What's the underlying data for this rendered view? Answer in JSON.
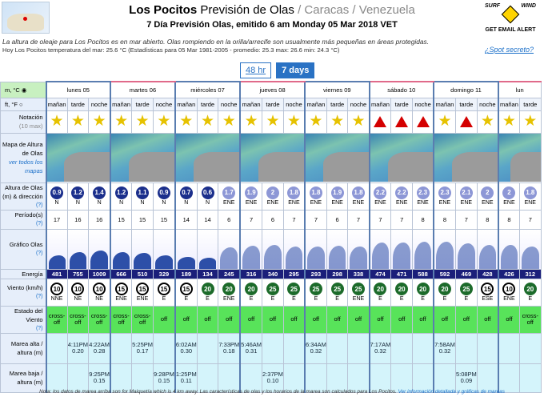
{
  "header": {
    "title_bold": "Los Pocitos",
    "title_normal": "Previsión de Olas",
    "title_gray": "/ Caracas / Venezuela",
    "subtitle": "7 Día Previsión Olas, emitido 6 am Monday 05 Mar 2018 VET",
    "logo_left": "SURF",
    "logo_right": "WIND",
    "logo_bottom": "GET EMAIL ALERT"
  },
  "notes": {
    "line1": "La altura de oleaje para Los Pocitos es en mar abierto. Olas rompiendo en la orilla/arrecife son usualmente más pequeñas en áreas protegidas.",
    "line2": "Hoy Los Pocitos temperatura del mar: 25.6 °C (Estadísticas para 05 Mar 1981-2005 - promedio: 25.3 max: 26.6 min: 24.3 °C)",
    "spot_link": "¿Spot secreto?"
  },
  "tabs": {
    "h48": "48 hr",
    "d7": "7 days"
  },
  "units": {
    "metric": "m, °C",
    "imperial": "ft, °F"
  },
  "days": [
    "lunes 05",
    "martes 06",
    "miércoles 07",
    "jueves 08",
    "viernes 09",
    "sábado 10",
    "domingo 11",
    "lun"
  ],
  "periods": [
    "mañan",
    "tarde",
    "noche"
  ],
  "period_row": [
    "mañan",
    "tarde",
    "noche",
    "mañan",
    "tarde",
    "noche",
    "mañan",
    "tarde",
    "noche",
    "mañan",
    "tarde",
    "noche",
    "mañan",
    "tarde",
    "noche",
    "mañan",
    "tarde",
    "noche",
    "mañan",
    "tarde",
    "noche",
    "mañan",
    "tarde"
  ],
  "labels": {
    "rating": "Notación",
    "rating_sub": "(10 max)",
    "map": "Mapa de Altura de Olas",
    "map_link": "ver todos los mapas",
    "height": "Altura de Olas (m) & dirección",
    "period": "Período(s)",
    "graph": "Gráfico Olas",
    "energy": "Energía",
    "wind": "Viento (km/h)",
    "wind_state": "Estado del Viento",
    "high_tide": "Marea alta / altura (m)",
    "low_tide": "Marea baja / altura (m)",
    "q": "(?)"
  },
  "graph_scale": [
    "10m",
    "5m",
    "3m",
    "2m",
    "1m",
    "0m"
  ],
  "rating_types": [
    "star",
    "star",
    "star",
    "star",
    "star",
    "star",
    "star",
    "star",
    "star",
    "star",
    "star",
    "star",
    "star",
    "star",
    "star",
    "tri",
    "tri",
    "tri",
    "star",
    "tri",
    "star",
    "star",
    "star"
  ],
  "heights": [
    "0.9",
    "1.2",
    "1.4",
    "1.2",
    "1.1",
    "0.9",
    "0.7",
    "0.6",
    "1.7",
    "1.9",
    "2",
    "1.8",
    "1.8",
    "1.9",
    "1.8",
    "2.2",
    "2.2",
    "2.3",
    "2.3",
    "2.1",
    "2",
    "2",
    "1.8"
  ],
  "height_dark": [
    true,
    true,
    true,
    true,
    true,
    true,
    true,
    true,
    false,
    false,
    false,
    false,
    false,
    false,
    false,
    false,
    false,
    false,
    false,
    false,
    false,
    false,
    false
  ],
  "directions": [
    "N",
    "N",
    "N",
    "N",
    "N",
    "N",
    "N",
    "N",
    "ENE",
    "ENE",
    "ENE",
    "ENE",
    "ENE",
    "ENE",
    "ENE",
    "ENE",
    "ENE",
    "ENE",
    "ENE",
    "ENE",
    "ENE",
    "ENE",
    "ENE"
  ],
  "period_values": [
    "17",
    "16",
    "16",
    "15",
    "15",
    "15",
    "14",
    "14",
    "6",
    "7",
    "6",
    "7",
    "7",
    "6",
    "7",
    "7",
    "7",
    "8",
    "8",
    "7",
    "8",
    "8",
    "7"
  ],
  "energy": [
    "481",
    "755",
    "1009",
    "666",
    "510",
    "329",
    "189",
    "134",
    "245",
    "316",
    "340",
    "295",
    "293",
    "298",
    "338",
    "474",
    "471",
    "588",
    "592",
    "469",
    "428",
    "426",
    "312"
  ],
  "wind_speed": [
    "10",
    "10",
    "10",
    "15",
    "15",
    "15",
    "15",
    "20",
    "20",
    "20",
    "25",
    "25",
    "25",
    "25",
    "25",
    "20",
    "20",
    "20",
    "20",
    "25",
    "15",
    "10",
    "20"
  ],
  "wind_green": [
    false,
    false,
    false,
    false,
    false,
    false,
    false,
    true,
    true,
    true,
    true,
    true,
    true,
    true,
    true,
    true,
    true,
    true,
    true,
    true,
    false,
    false,
    true
  ],
  "wind_dir": [
    "NNE",
    "NE",
    "NE",
    "ENE",
    "ENE",
    "E",
    "E",
    "E",
    "ENE",
    "E",
    "E",
    "E",
    "E",
    "E",
    "ENE",
    "E",
    "E",
    "E",
    "E",
    "E",
    "ESE",
    "ENE",
    "E"
  ],
  "wind_state": [
    "cross-off",
    "cross-off",
    "cross-off",
    "cross-off",
    "cross-off",
    "off",
    "off",
    "off",
    "off",
    "off",
    "off",
    "off",
    "off",
    "off",
    "off",
    "off",
    "off",
    "off",
    "off",
    "off",
    "off",
    "off",
    "cross-off"
  ],
  "high_tide": [
    "",
    "4:11PM 0.20",
    "4:22AM 0.28",
    "",
    "5:25PM 0.17",
    "",
    "6:02AM 0.30",
    "",
    "7:33PM 0.18",
    "5:46AM 0.31",
    "",
    "",
    "6:34AM 0.32",
    "",
    "",
    "7:17AM 0.32",
    "",
    "",
    "7:58AM 0.32",
    "",
    "",
    "",
    ""
  ],
  "low_tide": [
    "",
    "",
    "9:25PM 0.15",
    "",
    "",
    "9:28PM 0.15",
    "1:25PM 0.11",
    "",
    "",
    "",
    "2:37PM 0.10",
    "",
    "",
    "",
    "",
    "",
    "",
    "",
    "",
    "5:08PM 0.09",
    "",
    "",
    ""
  ],
  "footer": "Nota: los datos de marea arriba son for Maiquetía which is 4 km away. Las características de olas y los horarios de la marea son calculados para Los Pocitos.",
  "footer_link": "Ver información detallada y gráficas de mareas"
}
